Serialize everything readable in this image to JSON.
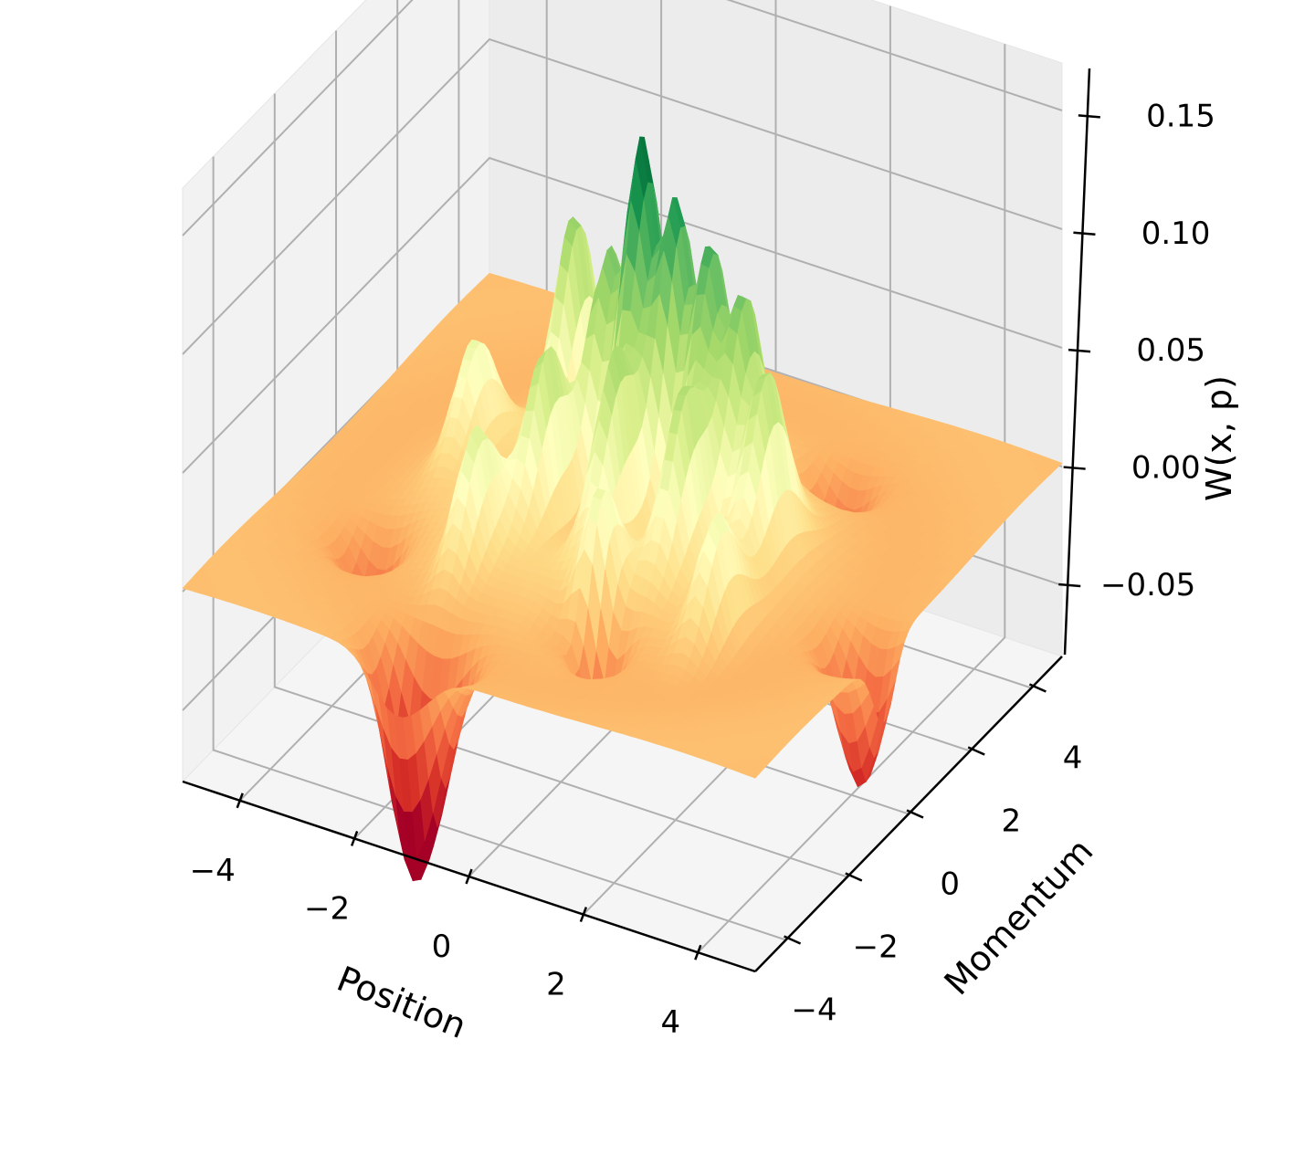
{
  "chart_data": {
    "type": "surface3d",
    "xlabel": "Position",
    "ylabel": "Momentum",
    "zlabel": "W(x, p)",
    "xlim": [
      -5,
      5
    ],
    "ylim": [
      -5,
      5
    ],
    "zlim": [
      -0.08,
      0.17
    ],
    "x_ticks": [
      "−4",
      "−2",
      "0",
      "2",
      "4"
    ],
    "y_ticks": [
      "−4",
      "−2",
      "0",
      "2",
      "4"
    ],
    "z_ticks": [
      "−0.05",
      "0.00",
      "0.05",
      "0.10",
      "0.15"
    ],
    "x_tick_values": [
      -4,
      -2,
      0,
      2,
      4
    ],
    "y_tick_values": [
      -4,
      -2,
      0,
      2,
      4
    ],
    "z_tick_values": [
      -0.05,
      0.0,
      0.05,
      0.1,
      0.15
    ],
    "colormap": "RdYlGn",
    "grid": true,
    "z_max_observed": 0.155,
    "z_min_observed": -0.075,
    "peaks": [
      {
        "x": 0.0,
        "p": 0.6,
        "w": 0.155
      },
      {
        "x": 0.6,
        "p": 0.6,
        "w": 0.13
      },
      {
        "x": 1.2,
        "p": 0.6,
        "w": 0.11
      },
      {
        "x": -0.6,
        "p": 0.6,
        "w": 0.1
      },
      {
        "x": 1.8,
        "p": 0.6,
        "w": 0.09
      },
      {
        "x": 0.3,
        "p": -0.8,
        "w": 0.085
      },
      {
        "x": -0.9,
        "p": -0.8,
        "w": 0.075
      },
      {
        "x": 1.5,
        "p": -0.8,
        "w": 0.07
      },
      {
        "x": -1.8,
        "p": 1.8,
        "w": 0.085
      },
      {
        "x": -0.6,
        "p": 2.2,
        "w": 0.07
      },
      {
        "x": 2.4,
        "p": 0.2,
        "w": 0.07
      },
      {
        "x": -1.4,
        "p": -2.2,
        "w": 0.05
      },
      {
        "x": 0.8,
        "p": -2.4,
        "w": 0.05
      },
      {
        "x": -2.8,
        "p": 0.4,
        "w": 0.045
      },
      {
        "x": 2.6,
        "p": -1.8,
        "w": 0.045
      }
    ],
    "troughs": [
      {
        "x": -1.4,
        "p": -4.4,
        "w": -0.075
      },
      {
        "x": -0.9,
        "p": -4.4,
        "w": -0.05
      },
      {
        "x": 4.6,
        "p": -0.8,
        "w": -0.06
      },
      {
        "x": 1.0,
        "p": -2.9,
        "w": -0.05
      },
      {
        "x": -3.2,
        "p": -2.2,
        "w": -0.03
      },
      {
        "x": 2.2,
        "p": 2.9,
        "w": -0.03
      }
    ]
  }
}
